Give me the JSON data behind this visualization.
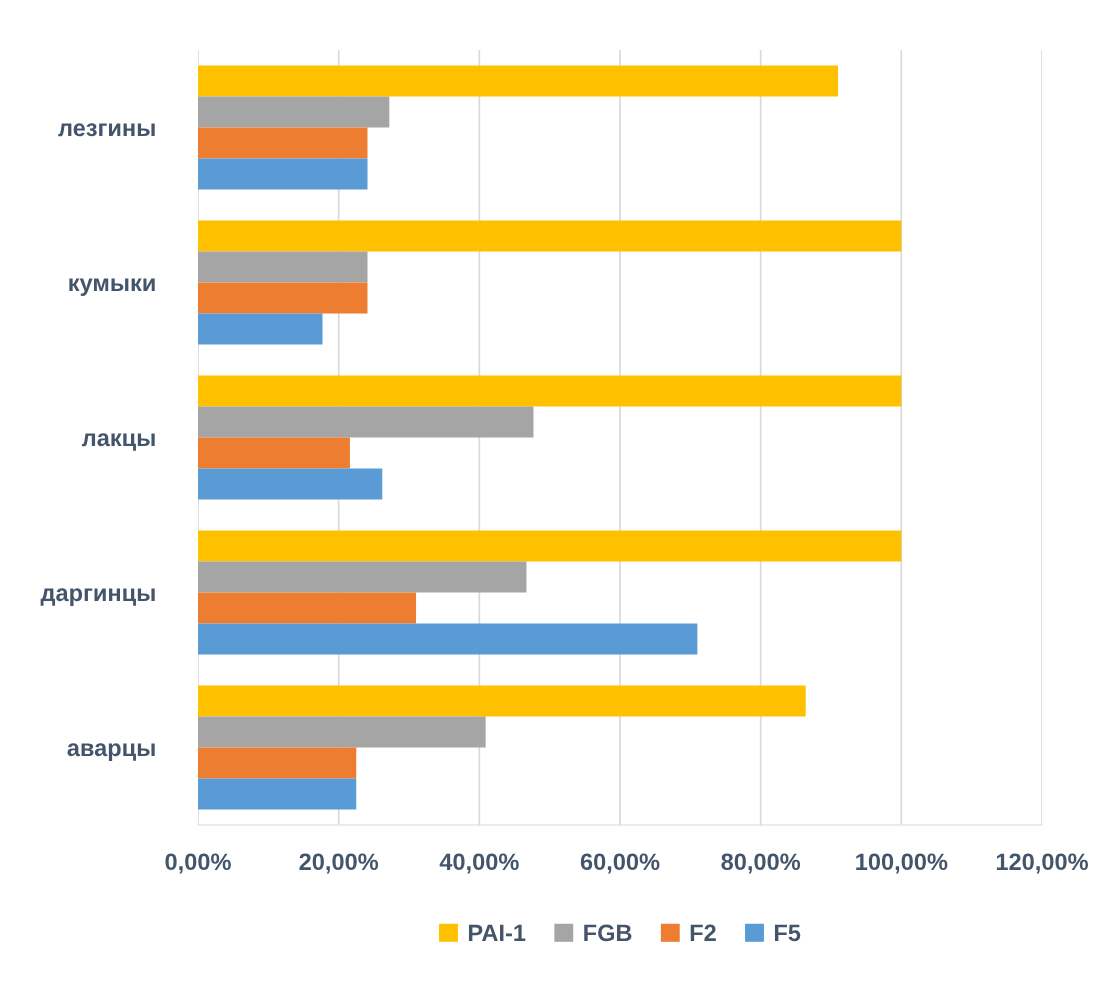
{
  "chart_data": {
    "type": "bar",
    "orientation": "horizontal",
    "categories": [
      "лезгины",
      "кумыки",
      "лакцы",
      "даргинцы",
      "аварцы"
    ],
    "series": [
      {
        "name": "PAI-1",
        "color": "#ffc000",
        "values": [
          91.0,
          100,
          100,
          100,
          86.4
        ]
      },
      {
        "name": "FGB",
        "color": "#a5a5a5",
        "values": [
          27.2,
          24.1,
          47.7,
          46.7,
          40.9
        ]
      },
      {
        "name": "F2",
        "color": "#ed7d31",
        "values": [
          24.1,
          24.1,
          21.6,
          31.0,
          22.5
        ]
      },
      {
        "name": "F5",
        "color": "#5b9bd5",
        "values": [
          24.1,
          17.7,
          26.2,
          71.0,
          22.5
        ]
      }
    ],
    "xlim": [
      0,
      120
    ],
    "xticks": [
      {
        "value": 0,
        "label": "0,00%"
      },
      {
        "value": 20,
        "label": "20,00%"
      },
      {
        "value": 40,
        "label": "40,00%"
      },
      {
        "value": 60,
        "label": "60,00%"
      },
      {
        "value": 80,
        "label": "80,00%"
      },
      {
        "value": 100,
        "label": "100,00%"
      },
      {
        "value": 120,
        "label": "120,00%"
      }
    ],
    "grid": "x",
    "legend": "bottom"
  }
}
